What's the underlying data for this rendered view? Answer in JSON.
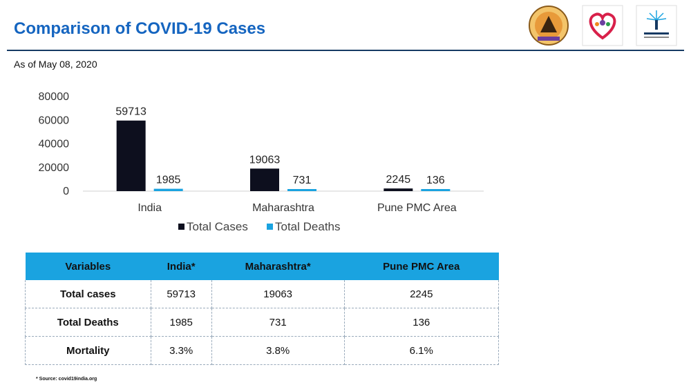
{
  "header": {
    "title": "Comparison of COVID-19 Cases",
    "subtitle": "As of May 08, 2020",
    "logo_icons": [
      "municipal-seal-icon",
      "health-heart-icon",
      "smart-city-icon"
    ]
  },
  "colors": {
    "title": "#1565c0",
    "total_cases": "#0d0f1e",
    "total_deaths": "#1aa3e0",
    "table_header": "#1aa3e0"
  },
  "chart_data": {
    "type": "bar",
    "categories": [
      "India",
      "Maharashtra",
      "Pune PMC Area"
    ],
    "series": [
      {
        "name": "Total Cases",
        "values": [
          59713,
          19063,
          2245
        ]
      },
      {
        "name": "Total Deaths",
        "values": [
          1985,
          731,
          136
        ]
      }
    ],
    "yticks": [
      0,
      20000,
      40000,
      60000,
      80000
    ],
    "ylim": [
      0,
      80000
    ],
    "grid": false,
    "legend": "bottom",
    "data_labels": true
  },
  "table": {
    "headers": [
      "Variables",
      "India*",
      "Maharashtra*",
      "Pune PMC Area"
    ],
    "rows": [
      [
        "Total cases",
        "59713",
        "19063",
        "2245"
      ],
      [
        "Total Deaths",
        "1985",
        "731",
        "136"
      ],
      [
        "Mortality",
        "3.3%",
        "3.8%",
        "6.1%"
      ]
    ]
  },
  "footnote": "* Source: covid19india.org"
}
